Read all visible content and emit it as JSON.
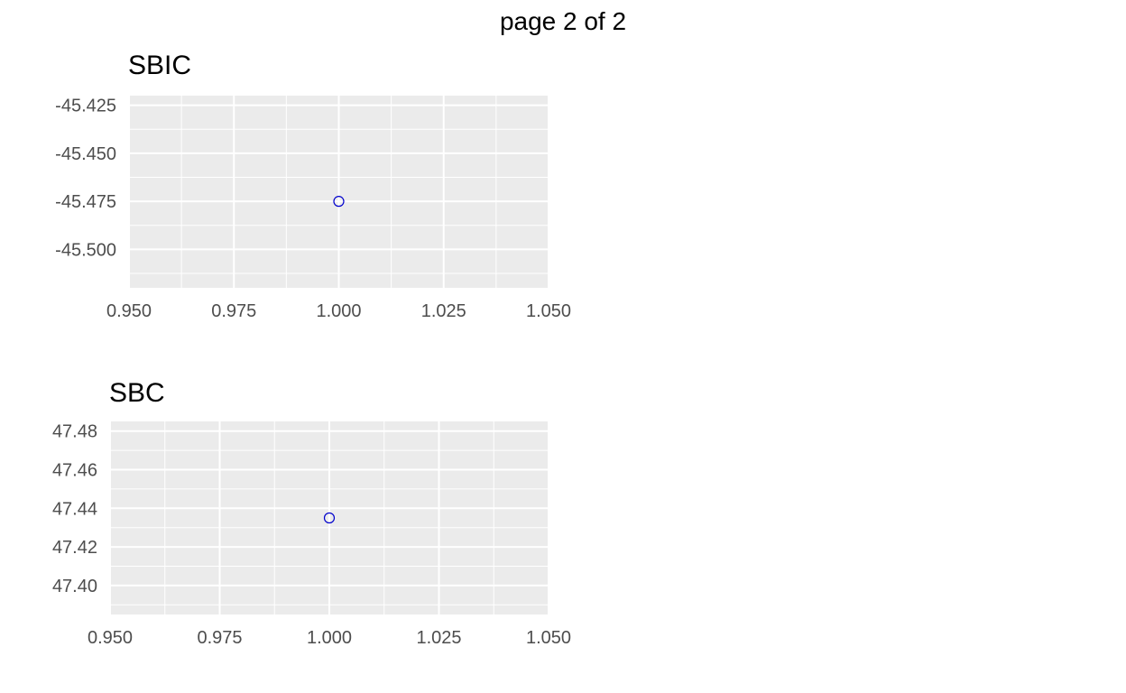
{
  "page": {
    "title": "page 2 of 2"
  },
  "chart_data": [
    {
      "type": "scatter",
      "title": "SBIC",
      "xlabel": "",
      "ylabel": "",
      "xlim": [
        0.95,
        1.05
      ],
      "ylim": [
        -45.52,
        -45.42
      ],
      "x_ticks": [
        0.95,
        0.975,
        1.0,
        1.025,
        1.05
      ],
      "x_tick_labels": [
        "0.950",
        "0.975",
        "1.000",
        "1.025",
        "1.050"
      ],
      "y_ticks": [
        -45.425,
        -45.45,
        -45.475,
        -45.5
      ],
      "y_tick_labels": [
        "-45.425",
        "-45.450",
        "-45.475",
        "-45.500"
      ],
      "grid": true,
      "point_color": "#0000cc",
      "panel_color": "#ebebeb",
      "points": [
        {
          "x": 1.0,
          "y": -45.475
        }
      ]
    },
    {
      "type": "scatter",
      "title": "SBC",
      "xlabel": "",
      "ylabel": "",
      "xlim": [
        0.95,
        1.05
      ],
      "ylim": [
        47.385,
        47.485
      ],
      "x_ticks": [
        0.95,
        0.975,
        1.0,
        1.025,
        1.05
      ],
      "x_tick_labels": [
        "0.950",
        "0.975",
        "1.000",
        "1.025",
        "1.050"
      ],
      "y_ticks": [
        47.48,
        47.46,
        47.44,
        47.42,
        47.4
      ],
      "y_tick_labels": [
        "47.48",
        "47.46",
        "47.44",
        "47.42",
        "47.40"
      ],
      "grid": true,
      "point_color": "#0000cc",
      "panel_color": "#ebebeb",
      "points": [
        {
          "x": 1.0,
          "y": 47.435
        }
      ]
    }
  ]
}
